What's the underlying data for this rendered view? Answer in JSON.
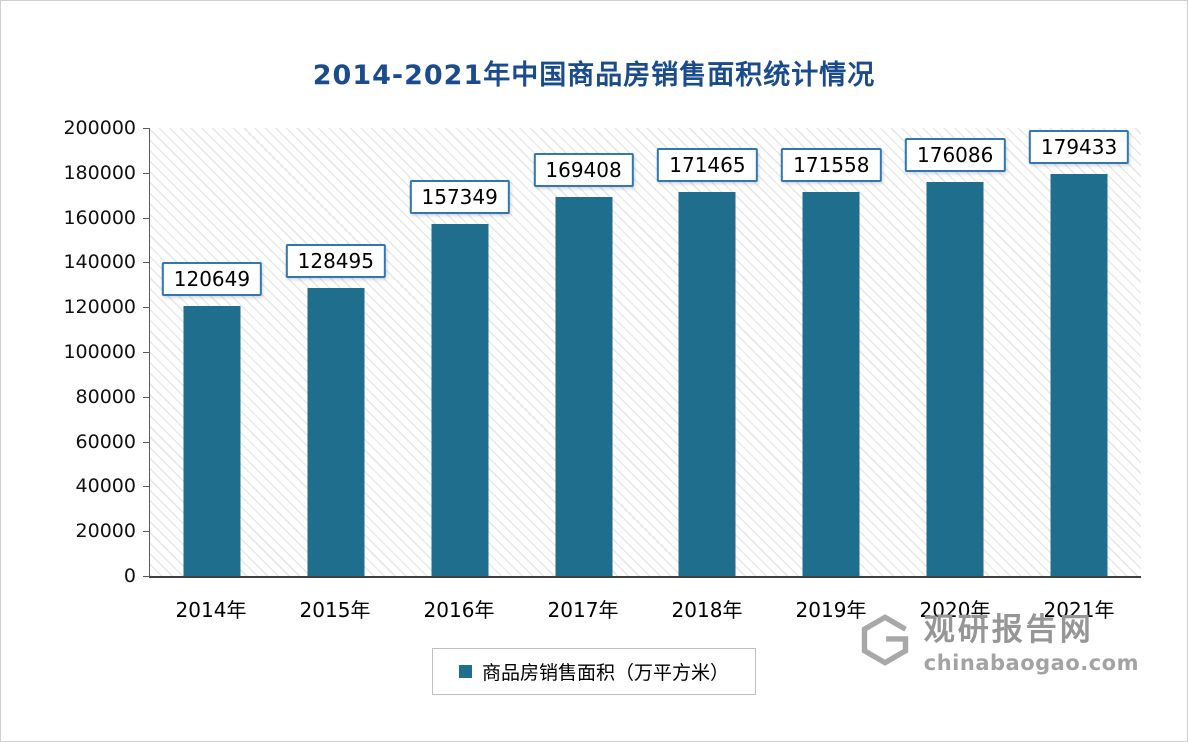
{
  "title": "2014-2021年中国商品房销售面积统计情况",
  "chart_data": {
    "type": "bar",
    "title": "2014-2021年中国商品房销售面积统计情况",
    "categories": [
      "2014年",
      "2015年",
      "2016年",
      "2017年",
      "2018年",
      "2019年",
      "2020年",
      "2021年"
    ],
    "values": [
      120649,
      128495,
      157349,
      169408,
      171465,
      171558,
      176086,
      179433
    ],
    "xlabel": "",
    "ylabel": "",
    "ylim": [
      0,
      200000
    ],
    "ytick_step": 20000,
    "grid": false,
    "legend_position": "bottom",
    "legend_label": "商品房销售面积（万平方米）",
    "bar_color": "#1f6e8e",
    "label_box_border_color": "#2f77b5",
    "title_color": "#1a4b8c",
    "hatch_background": true
  },
  "watermark": {
    "name": "观研报告网",
    "domain": "chinabaogao.com"
  }
}
